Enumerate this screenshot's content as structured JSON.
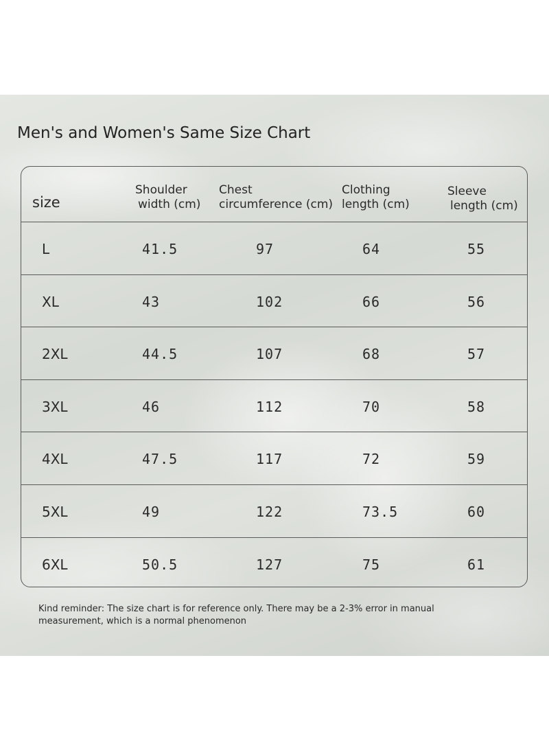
{
  "title": "Men's and Women's Same Size Chart",
  "table": {
    "headers": [
      {
        "line1": "size",
        "line2": ""
      },
      {
        "line1": "Shoulder",
        "line2": "width (cm)"
      },
      {
        "line1": "Chest",
        "line2": "circumference (cm)"
      },
      {
        "line1": "Clothing",
        "line2": "length (cm)"
      },
      {
        "line1": "Sleeve",
        "line2": "length (cm)"
      }
    ],
    "rows": [
      {
        "size": "L",
        "shoulder": "41.5",
        "chest": "97",
        "length": "64",
        "sleeve": "55"
      },
      {
        "size": "XL",
        "shoulder": "43",
        "chest": "102",
        "length": "66",
        "sleeve": "56"
      },
      {
        "size": "2XL",
        "shoulder": "44.5",
        "chest": "107",
        "length": "68",
        "sleeve": "57"
      },
      {
        "size": "3XL",
        "shoulder": "46",
        "chest": "112",
        "length": "70",
        "sleeve": "58"
      },
      {
        "size": "4XL",
        "shoulder": "47.5",
        "chest": "117",
        "length": "72",
        "sleeve": "59"
      },
      {
        "size": "5XL",
        "shoulder": "49",
        "chest": "122",
        "length": "73.5",
        "sleeve": "60"
      },
      {
        "size": "6XL",
        "shoulder": "50.5",
        "chest": "127",
        "length": "75",
        "sleeve": "61"
      }
    ]
  },
  "note": "Kind reminder: The size chart is for reference only. There may be a 2-3% error in manual measurement, which is a normal phenomenon"
}
